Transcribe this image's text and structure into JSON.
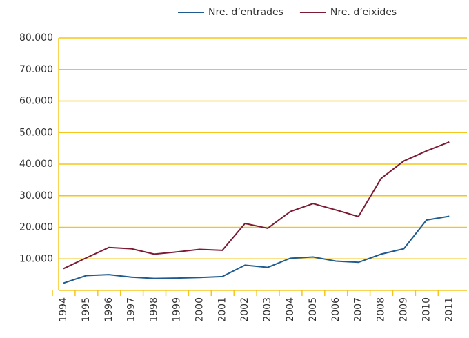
{
  "chart_data": {
    "type": "line",
    "categories": [
      "1994",
      "1995",
      "1996",
      "1997",
      "1998",
      "1999",
      "2000",
      "2001",
      "2002",
      "2003",
      "2004",
      "2005",
      "2006",
      "2007",
      "2008",
      "2009",
      "2010",
      "2011"
    ],
    "series": [
      {
        "name": "Nre.  d’entrades",
        "color": "#1f5b8e",
        "values": [
          2300,
          4700,
          5000,
          4200,
          3800,
          3900,
          4100,
          4400,
          8000,
          7300,
          10200,
          10600,
          9300,
          8900,
          11500,
          13200,
          22300,
          23500
        ]
      },
      {
        "name": "Nre. d’eixides",
        "color": "#7b1b34",
        "values": [
          6900,
          10300,
          13600,
          13200,
          11500,
          12200,
          13000,
          12700,
          21200,
          19700,
          25000,
          27500,
          25500,
          23400,
          35500,
          41000,
          44200,
          47000
        ]
      }
    ],
    "ylim": [
      0,
      80000
    ],
    "yticks": [
      {
        "value": 10000,
        "label": "10.000"
      },
      {
        "value": 20000,
        "label": "20.000"
      },
      {
        "value": 30000,
        "label": "30.000"
      },
      {
        "value": 40000,
        "label": "40.000"
      },
      {
        "value": 50000,
        "label": "50.000"
      },
      {
        "value": 60000,
        "label": "60.000"
      },
      {
        "value": 70000,
        "label": "70.000"
      },
      {
        "value": 80000,
        "label": "80.000"
      }
    ],
    "grid": true,
    "grid_color": "#f5c518"
  }
}
